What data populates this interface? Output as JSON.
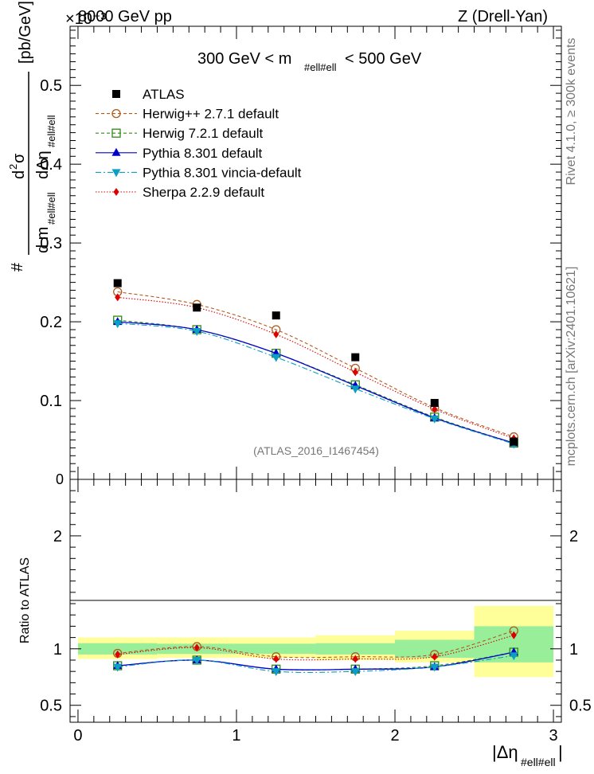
{
  "header": {
    "left": "8000 GeV pp",
    "exponent": "×10⁻³",
    "right": "Z (Drell-Yan)"
  },
  "side_labels": {
    "rivet": "Rivet 4.1.0, ≥ 300k events",
    "mcplots": "mcplots.cern.ch [arXiv:2401.10621]"
  },
  "main_panel": {
    "mass_cut": {
      "prefix": "300 GeV < m",
      "subscript": "#ell#ell",
      "suffix": "< 500 GeV"
    },
    "ylabel": {
      "numerator_hash": "#",
      "numerator_d": "d",
      "numerator_sup": "2",
      "numerator_sigma": "σ",
      "denom_d1": "d m",
      "denom_sub1": "#ell#ell",
      "denom_d2": "dΔη",
      "denom_sub2": "#ell#ell",
      "units": "[pb/GeV]"
    },
    "watermark": "(ATLAS_2016_I1467454)",
    "yticks": [
      "0.1",
      "0.2",
      "0.3",
      "0.4",
      "0.5"
    ],
    "ylim": [
      0,
      0.575
    ],
    "zero_label": "0"
  },
  "ratio_panel": {
    "ylabel": "Ratio to ATLAS",
    "yticks": [
      "0.5",
      "1",
      "2"
    ],
    "ylim": [
      0.35,
      2.5
    ]
  },
  "xaxis": {
    "ticks": [
      "0",
      "1",
      "2",
      "3"
    ],
    "xlim": [
      -0.05,
      3.05
    ],
    "label": "|Δη",
    "label_sub": "#ell#ell",
    "label_end": "|"
  },
  "chart_data": {
    "type": "scatter",
    "title": "300 GeV < m_ll < 500 GeV",
    "x": [
      0.25,
      0.75,
      1.25,
      1.75,
      2.25,
      2.75
    ],
    "bin_edges": [
      0,
      0.5,
      1.0,
      1.5,
      2.0,
      2.5,
      3.0
    ],
    "xlabel": "|Δη_ll|",
    "ylabel": "d²σ / d m_ll dΔη_ll [pb/GeV] (×10⁻³)",
    "data": {
      "name": "ATLAS",
      "values": [
        0.249,
        0.218,
        0.208,
        0.155,
        0.097,
        0.048
      ]
    },
    "series": [
      {
        "name": "Herwig++ 2.7.1 default",
        "color": "#b05a1a",
        "marker": "open-circle",
        "dash": "4,3",
        "values": [
          0.238,
          0.222,
          0.19,
          0.141,
          0.091,
          0.054
        ]
      },
      {
        "name": "Herwig 7.2.1 default",
        "color": "#2e8b16",
        "marker": "open-square",
        "dash": "4,3",
        "values": [
          0.202,
          0.19,
          0.16,
          0.12,
          0.079,
          0.046
        ]
      },
      {
        "name": "Pythia 8.301 default",
        "color": "#0000cc",
        "marker": "triangle-up",
        "dash": "",
        "values": [
          0.2,
          0.19,
          0.16,
          0.119,
          0.078,
          0.046
        ]
      },
      {
        "name": "Pythia 8.301 vincia-default",
        "color": "#0b9fc4",
        "marker": "triangle-down",
        "dash": "7,3,2,3",
        "values": [
          0.198,
          0.188,
          0.155,
          0.115,
          0.077,
          0.045
        ]
      },
      {
        "name": "Sherpa 2.2.9 default",
        "color": "#dd0000",
        "marker": "diamond",
        "dash": "1.5,2",
        "values": [
          0.231,
          0.218,
          0.184,
          0.136,
          0.089,
          0.052
        ]
      }
    ],
    "ratio": {
      "ylabel": "Ratio to ATLAS",
      "band_inner": [
        [
          0.95,
          1.05
        ],
        [
          0.955,
          1.045
        ],
        [
          0.955,
          1.045
        ],
        [
          0.95,
          1.05
        ],
        [
          0.92,
          1.08
        ],
        [
          0.88,
          1.2
        ]
      ],
      "band_outer": [
        [
          0.91,
          1.1
        ],
        [
          0.92,
          1.1
        ],
        [
          0.92,
          1.1
        ],
        [
          0.9,
          1.12
        ],
        [
          0.88,
          1.16
        ],
        [
          0.75,
          1.38
        ]
      ],
      "series": [
        {
          "name": "Herwig++ 2.7.1 default",
          "values": [
            0.96,
            1.02,
            0.93,
            0.93,
            0.95,
            1.16
          ]
        },
        {
          "name": "Herwig 7.2.1 default",
          "values": [
            0.85,
            0.9,
            0.82,
            0.82,
            0.85,
            0.97
          ]
        },
        {
          "name": "Pythia 8.301 default",
          "values": [
            0.85,
            0.9,
            0.82,
            0.82,
            0.84,
            0.97
          ]
        },
        {
          "name": "Pythia 8.301 vincia-default",
          "values": [
            0.84,
            0.9,
            0.8,
            0.8,
            0.84,
            0.94
          ]
        },
        {
          "name": "Sherpa 2.2.9 default",
          "values": [
            0.95,
            1.01,
            0.91,
            0.91,
            0.93,
            1.12
          ]
        }
      ]
    }
  }
}
